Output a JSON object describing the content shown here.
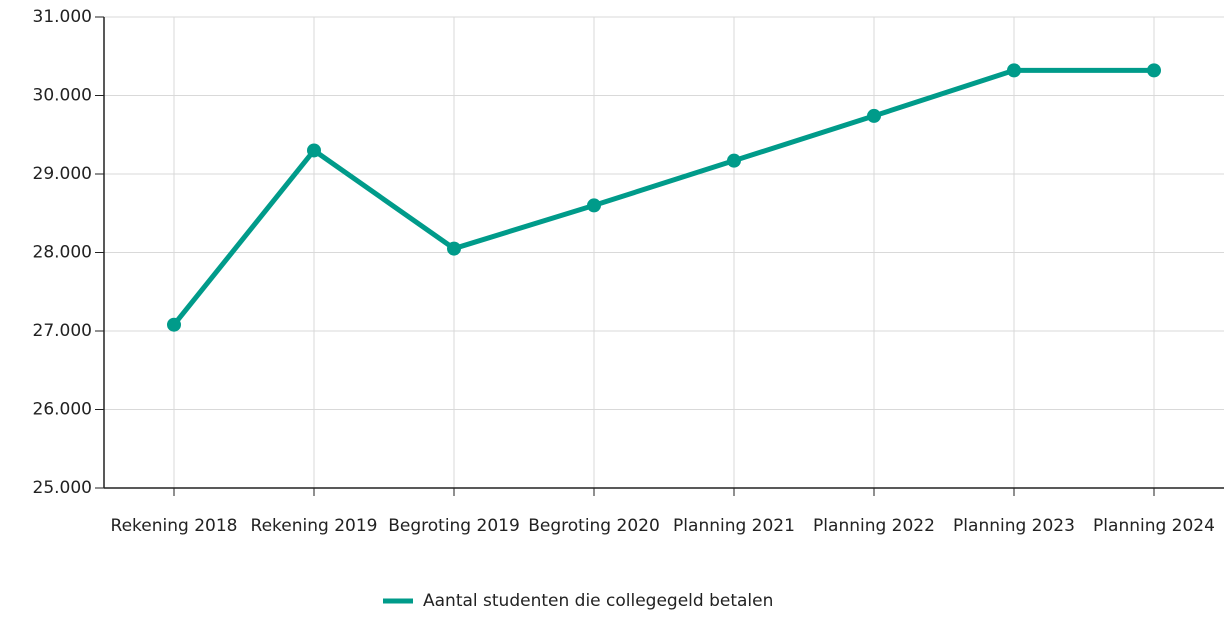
{
  "chart_data": {
    "type": "line",
    "categories": [
      "Rekening 2018",
      "Rekening 2019",
      "Begroting 2019",
      "Begroting 2020",
      "Planning 2021",
      "Planning 2022",
      "Planning 2023",
      "Planning 2024"
    ],
    "series": [
      {
        "name": "Aantal studenten die collegegeld betalen",
        "color": "#009b8a",
        "values": [
          27080,
          29300,
          28050,
          28600,
          29170,
          29740,
          30320,
          30320
        ]
      }
    ],
    "ylim": [
      25000,
      31000
    ],
    "yticks": [
      {
        "value": 25000,
        "label": "25.000"
      },
      {
        "value": 26000,
        "label": "26.000"
      },
      {
        "value": 27000,
        "label": "27.000"
      },
      {
        "value": 28000,
        "label": "28.000"
      },
      {
        "value": 29000,
        "label": "29.000"
      },
      {
        "value": 30000,
        "label": "30.000"
      },
      {
        "value": 31000,
        "label": "31.000"
      }
    ],
    "grid": true,
    "legend": "bottom"
  }
}
